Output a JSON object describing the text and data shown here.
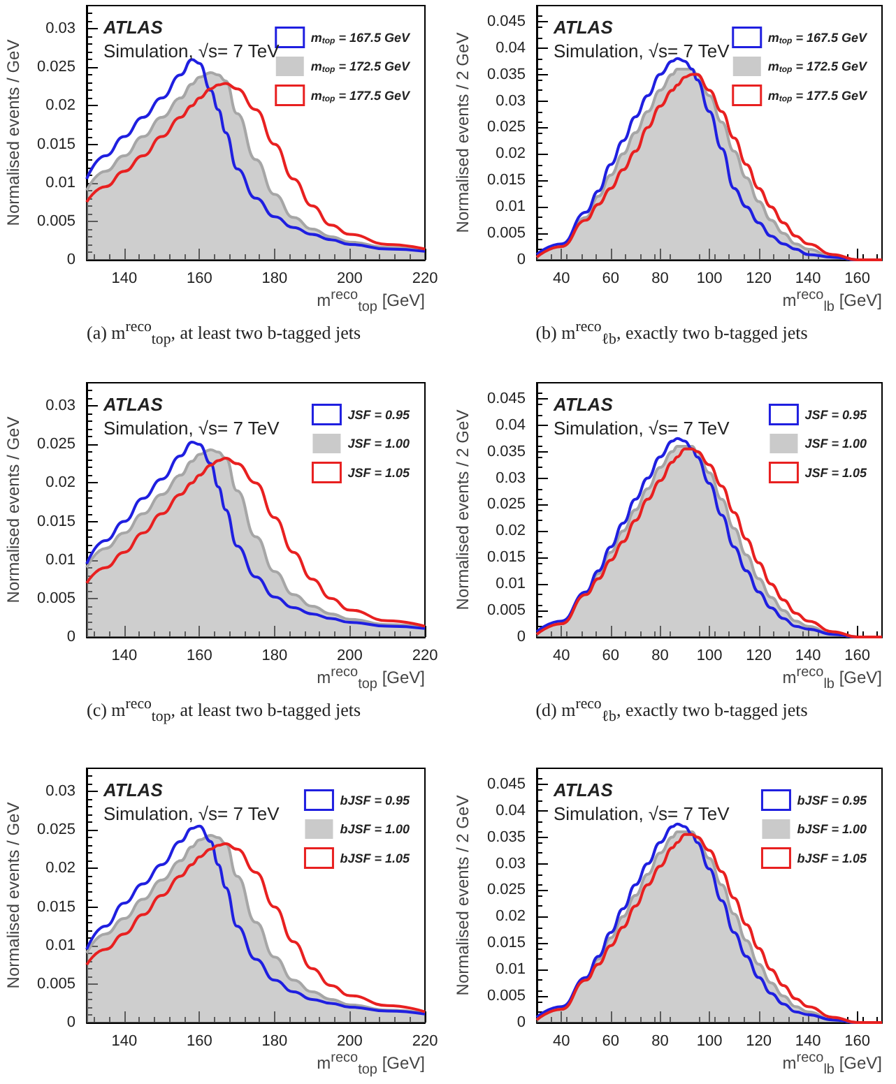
{
  "chart_data": [
    {
      "type": "line",
      "xlabel": "m$^{reco}$$_{top}$ [GeV]",
      "ylabel": "Normalised events / GeV",
      "xlim": [
        130,
        220
      ],
      "xticks": [
        140,
        160,
        180,
        200,
        220
      ],
      "ylim": [
        0,
        0.033
      ],
      "yticks": [
        0,
        0.005,
        0.01,
        0.015,
        0.02,
        0.025,
        0.03
      ],
      "grid": false,
      "legend": "top right",
      "line_style": "solid",
      "annotations": [
        "ATLAS",
        "Simulation, √s= 7 TeV",
        "(a) m$^{reco}$$_{top}$, at least two b-tagged jets"
      ],
      "x": [
        130,
        135,
        140,
        145,
        150,
        155,
        158,
        160,
        163,
        165,
        167,
        170,
        175,
        180,
        185,
        190,
        195,
        200,
        210,
        220
      ],
      "series": [
        {
          "name": "m$_{top}$ = 167.5 GeV",
          "color": "#1f1fe0",
          "values": [
            0.0105,
            0.0135,
            0.016,
            0.0185,
            0.021,
            0.024,
            0.026,
            0.0255,
            0.022,
            0.0195,
            0.0165,
            0.0118,
            0.008,
            0.0056,
            0.0042,
            0.0033,
            0.0026,
            0.002,
            0.0014,
            0.0011
          ]
        },
        {
          "name": "m$_{top}$ = 172.5 GeV",
          "type": "area",
          "color": "#a6a6a6",
          "values": [
            0.009,
            0.0115,
            0.0135,
            0.016,
            0.0185,
            0.021,
            0.0228,
            0.0237,
            0.0243,
            0.024,
            0.0232,
            0.019,
            0.013,
            0.0085,
            0.0055,
            0.004,
            0.003,
            0.0023,
            0.0016,
            0.0012
          ]
        },
        {
          "name": "m$_{top}$ = 177.5 GeV",
          "color": "#e82020",
          "values": [
            0.0075,
            0.0095,
            0.0115,
            0.0135,
            0.016,
            0.0185,
            0.02,
            0.021,
            0.0222,
            0.0227,
            0.0229,
            0.0222,
            0.0195,
            0.015,
            0.0105,
            0.007,
            0.0045,
            0.0033,
            0.002,
            0.0014
          ]
        }
      ]
    },
    {
      "type": "line",
      "xlabel": "m$^{reco}$$_{lb}$ [GeV]",
      "ylabel": "Normalised events / 2 GeV",
      "xlim": [
        30,
        170
      ],
      "xticks": [
        40,
        60,
        80,
        100,
        120,
        140,
        160
      ],
      "ylim": [
        0,
        0.048
      ],
      "yticks": [
        0,
        0.005,
        0.01,
        0.015,
        0.02,
        0.025,
        0.03,
        0.035,
        0.04,
        0.045
      ],
      "grid": false,
      "legend": "top right",
      "line_style": "solid",
      "annotations": [
        "ATLAS",
        "Simulation, √s= 7 TeV",
        "(b) m$^{reco}$$_{ℓb}$, exactly two b-tagged jets"
      ],
      "x": [
        30,
        40,
        50,
        55,
        60,
        65,
        70,
        75,
        80,
        85,
        87,
        90,
        93,
        95,
        100,
        105,
        110,
        115,
        120,
        125,
        130,
        135,
        140,
        150,
        160,
        170
      ],
      "series": [
        {
          "name": "m$_{top}$ = 167.5 GeV",
          "color": "#1f1fe0",
          "values": [
            0.001,
            0.003,
            0.009,
            0.013,
            0.018,
            0.0225,
            0.027,
            0.031,
            0.035,
            0.0375,
            0.038,
            0.0375,
            0.036,
            0.034,
            0.028,
            0.021,
            0.0135,
            0.01,
            0.007,
            0.0045,
            0.003,
            0.002,
            0.001,
            0.0005,
            0,
            0
          ]
        },
        {
          "name": "m$_{top}$ = 172.5 GeV",
          "type": "area",
          "color": "#a6a6a6",
          "values": [
            0.0005,
            0.0025,
            0.008,
            0.012,
            0.016,
            0.02,
            0.024,
            0.028,
            0.032,
            0.035,
            0.036,
            0.036,
            0.036,
            0.035,
            0.031,
            0.026,
            0.0205,
            0.0155,
            0.011,
            0.0075,
            0.005,
            0.003,
            0.002,
            0.0005,
            0,
            0
          ]
        },
        {
          "name": "m$_{top}$ = 177.5 GeV",
          "color": "#e82020",
          "values": [
            0.0005,
            0.0025,
            0.0075,
            0.0105,
            0.0135,
            0.017,
            0.0205,
            0.025,
            0.029,
            0.032,
            0.033,
            0.0345,
            0.035,
            0.035,
            0.032,
            0.028,
            0.023,
            0.018,
            0.0135,
            0.01,
            0.007,
            0.0045,
            0.003,
            0.001,
            0,
            0
          ]
        }
      ]
    },
    {
      "type": "line",
      "xlabel": "m$^{reco}$$_{top}$ [GeV]",
      "ylabel": "Normalised events / GeV",
      "xlim": [
        130,
        220
      ],
      "xticks": [
        140,
        160,
        180,
        200,
        220
      ],
      "ylim": [
        0,
        0.033
      ],
      "yticks": [
        0,
        0.005,
        0.01,
        0.015,
        0.02,
        0.025,
        0.03
      ],
      "grid": false,
      "legend": "top right",
      "line_style": "solid",
      "annotations": [
        "ATLAS",
        "Simulation, √s= 7 TeV",
        "(c) m$^{reco}$$_{top}$, at least two b-tagged jets"
      ],
      "x": [
        130,
        135,
        140,
        145,
        150,
        155,
        158,
        160,
        163,
        165,
        167,
        170,
        175,
        180,
        185,
        190,
        195,
        200,
        210,
        220
      ],
      "series": [
        {
          "name": "JSF = 0.95",
          "color": "#1f1fe0",
          "values": [
            0.0095,
            0.0125,
            0.015,
            0.018,
            0.0205,
            0.0235,
            0.0253,
            0.025,
            0.0225,
            0.0195,
            0.0165,
            0.0118,
            0.0078,
            0.0052,
            0.0038,
            0.003,
            0.0024,
            0.0019,
            0.0014,
            0.0011
          ]
        },
        {
          "name": "JSF = 1.00",
          "type": "area",
          "color": "#a6a6a6",
          "values": [
            0.009,
            0.0115,
            0.0135,
            0.016,
            0.0185,
            0.021,
            0.0228,
            0.0237,
            0.0243,
            0.024,
            0.0232,
            0.019,
            0.013,
            0.0085,
            0.0055,
            0.004,
            0.003,
            0.0023,
            0.0016,
            0.0012
          ]
        },
        {
          "name": "JSF = 1.05",
          "color": "#e82020",
          "values": [
            0.007,
            0.009,
            0.011,
            0.0135,
            0.016,
            0.0185,
            0.02,
            0.021,
            0.0223,
            0.0229,
            0.0232,
            0.0225,
            0.02,
            0.0155,
            0.011,
            0.0075,
            0.005,
            0.0035,
            0.0021,
            0.0014
          ]
        }
      ]
    },
    {
      "type": "line",
      "xlabel": "m$^{reco}$$_{lb}$ [GeV]",
      "ylabel": "Normalised events / 2 GeV",
      "xlim": [
        30,
        170
      ],
      "xticks": [
        40,
        60,
        80,
        100,
        120,
        140,
        160
      ],
      "ylim": [
        0,
        0.048
      ],
      "yticks": [
        0,
        0.005,
        0.01,
        0.015,
        0.02,
        0.025,
        0.03,
        0.035,
        0.04,
        0.045
      ],
      "grid": false,
      "legend": "top right",
      "line_style": "solid",
      "annotations": [
        "ATLAS",
        "Simulation, √s= 7 TeV",
        "(d) m$^{reco}$$_{ℓb}$, exactly two b-tagged jets"
      ],
      "x": [
        30,
        40,
        50,
        55,
        60,
        65,
        70,
        75,
        80,
        85,
        87,
        90,
        93,
        95,
        100,
        105,
        110,
        115,
        120,
        125,
        130,
        135,
        140,
        150,
        160,
        170
      ],
      "series": [
        {
          "name": "JSF = 0.95",
          "color": "#1f1fe0",
          "values": [
            0.001,
            0.003,
            0.0085,
            0.0125,
            0.017,
            0.0215,
            0.026,
            0.03,
            0.034,
            0.037,
            0.0375,
            0.037,
            0.0355,
            0.034,
            0.029,
            0.023,
            0.017,
            0.0125,
            0.0085,
            0.0055,
            0.0035,
            0.002,
            0.0015,
            0.0005,
            0,
            0
          ]
        },
        {
          "name": "JSF = 1.00",
          "type": "area",
          "color": "#a6a6a6",
          "values": [
            0.0005,
            0.0025,
            0.008,
            0.012,
            0.016,
            0.02,
            0.024,
            0.028,
            0.032,
            0.035,
            0.036,
            0.036,
            0.036,
            0.035,
            0.031,
            0.026,
            0.0205,
            0.0155,
            0.011,
            0.0075,
            0.005,
            0.003,
            0.002,
            0.0005,
            0,
            0
          ]
        },
        {
          "name": "JSF = 1.05",
          "color": "#e82020",
          "values": [
            0.0005,
            0.0025,
            0.008,
            0.011,
            0.0145,
            0.018,
            0.022,
            0.026,
            0.0295,
            0.033,
            0.034,
            0.0355,
            0.0355,
            0.035,
            0.0325,
            0.0285,
            0.0235,
            0.0185,
            0.014,
            0.01,
            0.007,
            0.0045,
            0.003,
            0.001,
            0,
            0
          ]
        }
      ]
    },
    {
      "type": "line",
      "xlabel": "m$^{reco}$$_{top}$ [GeV]",
      "ylabel": "Normalised events / GeV",
      "xlim": [
        130,
        220
      ],
      "xticks": [
        140,
        160,
        180,
        200,
        220
      ],
      "ylim": [
        0,
        0.033
      ],
      "yticks": [
        0,
        0.005,
        0.01,
        0.015,
        0.02,
        0.025,
        0.03
      ],
      "grid": false,
      "legend": "top right",
      "line_style": "solid",
      "annotations": [
        "ATLAS",
        "Simulation, √s= 7 TeV"
      ],
      "x": [
        130,
        135,
        140,
        145,
        150,
        155,
        158,
        160,
        163,
        165,
        167,
        170,
        175,
        180,
        185,
        190,
        195,
        200,
        210,
        220
      ],
      "series": [
        {
          "name": "bJSF = 0.95",
          "color": "#1f1fe0",
          "values": [
            0.0095,
            0.0125,
            0.0155,
            0.018,
            0.0205,
            0.0235,
            0.0252,
            0.0255,
            0.0235,
            0.0205,
            0.0175,
            0.0125,
            0.0082,
            0.0055,
            0.004,
            0.003,
            0.0025,
            0.002,
            0.0015,
            0.0011
          ]
        },
        {
          "name": "bJSF = 1.00",
          "type": "area",
          "color": "#a6a6a6",
          "values": [
            0.009,
            0.0115,
            0.0135,
            0.016,
            0.0185,
            0.021,
            0.0228,
            0.0237,
            0.0243,
            0.024,
            0.0232,
            0.019,
            0.013,
            0.0085,
            0.0055,
            0.004,
            0.003,
            0.0023,
            0.0016,
            0.0012
          ]
        },
        {
          "name": "bJSF = 1.05",
          "color": "#e82020",
          "values": [
            0.0075,
            0.0095,
            0.0115,
            0.014,
            0.0165,
            0.019,
            0.0205,
            0.0215,
            0.0225,
            0.023,
            0.0232,
            0.0225,
            0.0195,
            0.015,
            0.0105,
            0.007,
            0.0048,
            0.0035,
            0.0022,
            0.0014
          ]
        }
      ]
    },
    {
      "type": "line",
      "xlabel": "m$^{reco}$$_{lb}$ [GeV]",
      "ylabel": "Normalised events / 2 GeV",
      "xlim": [
        30,
        170
      ],
      "xticks": [
        40,
        60,
        80,
        100,
        120,
        140,
        160
      ],
      "ylim": [
        0,
        0.048
      ],
      "yticks": [
        0,
        0.005,
        0.01,
        0.015,
        0.02,
        0.025,
        0.03,
        0.035,
        0.04,
        0.045
      ],
      "grid": false,
      "legend": "top right",
      "line_style": "solid",
      "annotations": [
        "ATLAS",
        "Simulation, √s= 7 TeV"
      ],
      "x": [
        30,
        40,
        50,
        55,
        60,
        65,
        70,
        75,
        80,
        85,
        87,
        90,
        93,
        95,
        100,
        105,
        110,
        115,
        120,
        125,
        130,
        135,
        140,
        150,
        160,
        170
      ],
      "series": [
        {
          "name": "bJSF = 0.95",
          "color": "#1f1fe0",
          "values": [
            0.001,
            0.003,
            0.0085,
            0.0125,
            0.017,
            0.0215,
            0.026,
            0.03,
            0.034,
            0.037,
            0.0375,
            0.037,
            0.0355,
            0.034,
            0.029,
            0.023,
            0.017,
            0.0125,
            0.0085,
            0.0055,
            0.0035,
            0.002,
            0.0015,
            0.0005,
            0,
            0
          ]
        },
        {
          "name": "bJSF = 1.00",
          "type": "area",
          "color": "#a6a6a6",
          "values": [
            0.0005,
            0.0025,
            0.008,
            0.012,
            0.016,
            0.02,
            0.024,
            0.028,
            0.032,
            0.035,
            0.036,
            0.036,
            0.036,
            0.035,
            0.031,
            0.026,
            0.0205,
            0.0155,
            0.011,
            0.0075,
            0.005,
            0.003,
            0.002,
            0.0005,
            0,
            0
          ]
        },
        {
          "name": "bJSF = 1.05",
          "color": "#e82020",
          "values": [
            0.0005,
            0.0025,
            0.008,
            0.011,
            0.0145,
            0.018,
            0.022,
            0.026,
            0.0295,
            0.033,
            0.034,
            0.0355,
            0.0355,
            0.035,
            0.0325,
            0.0285,
            0.0235,
            0.0185,
            0.014,
            0.01,
            0.007,
            0.0045,
            0.003,
            0.001,
            0,
            0
          ]
        }
      ]
    }
  ]
}
